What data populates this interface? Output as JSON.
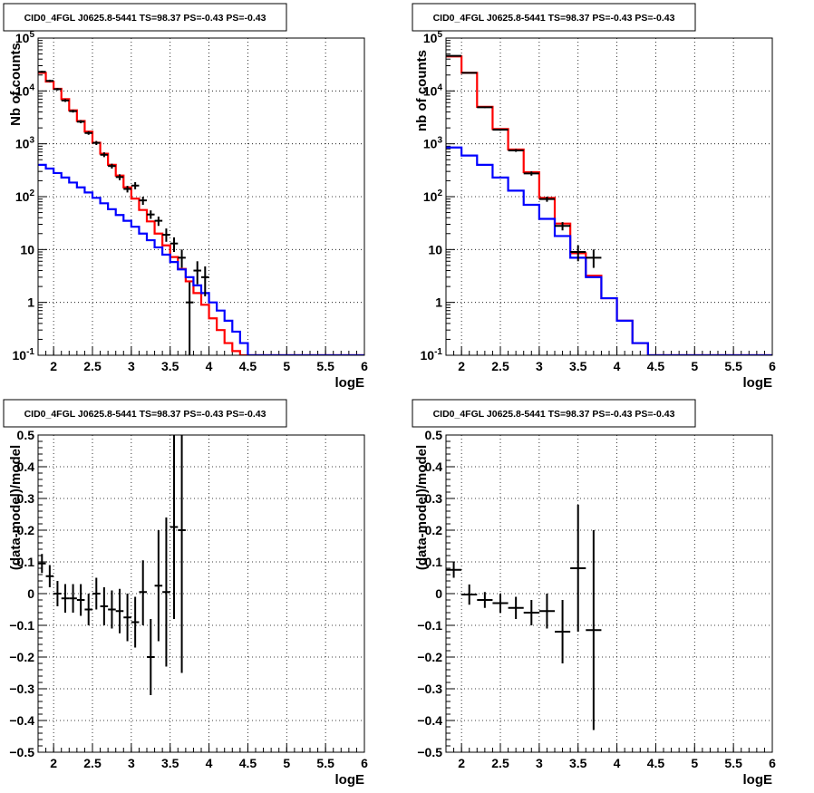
{
  "chart_data": [
    {
      "type": "line",
      "title": "CID0_4FGL J0625.8-5441 TS=98.37 PS=-0.43 PS=-0.43",
      "xlabel": "logE",
      "ylabel": "Nb of counts",
      "xlim": [
        1.8,
        6
      ],
      "ylim": [
        0.1,
        100000
      ],
      "yscale": "log",
      "grid": true,
      "x_ticks": [
        "2",
        "2.5",
        "3",
        "3.5",
        "4",
        "4.5",
        "5",
        "5.5",
        "6"
      ],
      "y_ticks": [
        "10^-1",
        "1",
        "10",
        "10^2",
        "10^3",
        "10^4",
        "10^5"
      ],
      "bin_edges": [
        1.8,
        1.9,
        2.0,
        2.1,
        2.2,
        2.3,
        2.4,
        2.5,
        2.6,
        2.7,
        2.8,
        2.9,
        3.0,
        3.1,
        3.2,
        3.3,
        3.4,
        3.5,
        3.6,
        3.7,
        3.8,
        3.9,
        4.0,
        4.1,
        4.2,
        4.3,
        4.4,
        4.5,
        4.6,
        4.7,
        4.8,
        4.9,
        5.0,
        5.1,
        5.2,
        5.3,
        5.4,
        5.5,
        5.6,
        5.7,
        5.8,
        5.9,
        6.0
      ],
      "series": [
        {
          "color": "#ff0000",
          "style": "step",
          "values": [
            22000,
            15000,
            11000,
            7000,
            4300,
            2700,
            1700,
            1050,
            650,
            400,
            250,
            150,
            92,
            56,
            34,
            20,
            12,
            7.2,
            4.3,
            2.5,
            1.5,
            0.9,
            0.5,
            0.3,
            0.17,
            0.12,
            0.1,
            0.1,
            0.1,
            0.1,
            0.1,
            0.1,
            0.1,
            0.1,
            0.1,
            0.1,
            0.1,
            0.1,
            0.1,
            0.1,
            0.1,
            0.1
          ]
        },
        {
          "color": "#0000ff",
          "style": "step",
          "values": [
            400,
            340,
            280,
            230,
            185,
            150,
            120,
            95,
            75,
            58,
            45,
            35,
            27,
            20,
            15,
            11,
            8,
            5.8,
            4.2,
            3.0,
            2.1,
            1.5,
            1.0,
            0.7,
            0.45,
            0.28,
            0.17,
            0.1,
            0.1,
            0.1,
            0.1,
            0.1,
            0.1,
            0.1,
            0.1,
            0.1,
            0.1,
            0.1,
            0.1,
            0.1,
            0.1,
            0.1
          ]
        }
      ],
      "points": [
        {
          "x": 1.85,
          "y": 23000,
          "ylo": 22000,
          "yhi": 24000
        },
        {
          "x": 1.95,
          "y": 15500,
          "ylo": 14700,
          "yhi": 16300
        },
        {
          "x": 2.05,
          "y": 10800,
          "ylo": 10200,
          "yhi": 11400
        },
        {
          "x": 2.15,
          "y": 6600,
          "ylo": 6200,
          "yhi": 7000
        },
        {
          "x": 2.25,
          "y": 4150,
          "ylo": 3900,
          "yhi": 4400
        },
        {
          "x": 2.35,
          "y": 2620,
          "ylo": 2450,
          "yhi": 2800
        },
        {
          "x": 2.45,
          "y": 1600,
          "ylo": 1480,
          "yhi": 1720
        },
        {
          "x": 2.55,
          "y": 1040,
          "ylo": 950,
          "yhi": 1130
        },
        {
          "x": 2.65,
          "y": 620,
          "ylo": 560,
          "yhi": 690
        },
        {
          "x": 2.75,
          "y": 380,
          "ylo": 340,
          "yhi": 420
        },
        {
          "x": 2.85,
          "y": 235,
          "ylo": 205,
          "yhi": 265
        },
        {
          "x": 2.95,
          "y": 140,
          "ylo": 120,
          "yhi": 160
        },
        {
          "x": 3.05,
          "y": 162,
          "ylo": 138,
          "yhi": 188
        },
        {
          "x": 3.15,
          "y": 85,
          "ylo": 70,
          "yhi": 100
        },
        {
          "x": 3.25,
          "y": 46,
          "ylo": 38,
          "yhi": 55
        },
        {
          "x": 3.35,
          "y": 35,
          "ylo": 28,
          "yhi": 42
        },
        {
          "x": 3.45,
          "y": 19,
          "ylo": 14,
          "yhi": 25
        },
        {
          "x": 3.55,
          "y": 13,
          "ylo": 9,
          "yhi": 17
        },
        {
          "x": 3.65,
          "y": 7,
          "ylo": 4.5,
          "yhi": 10
        },
        {
          "x": 3.75,
          "y": 1,
          "ylo": 0.1,
          "yhi": 2.4
        },
        {
          "x": 3.85,
          "y": 4,
          "ylo": 2.2,
          "yhi": 6
        },
        {
          "x": 3.95,
          "y": 3,
          "ylo": 1.3,
          "yhi": 4.8
        }
      ]
    },
    {
      "type": "line",
      "title": "CID0_4FGL J0625.8-5441 TS=98.37 PS=-0.43 PS=-0.43",
      "xlabel": "logE",
      "ylabel": "nb of counts",
      "xlim": [
        1.8,
        6
      ],
      "ylim": [
        0.1,
        100000
      ],
      "yscale": "log",
      "grid": true,
      "x_ticks": [
        "2",
        "2.5",
        "3",
        "3.5",
        "4",
        "4.5",
        "5",
        "5.5",
        "6"
      ],
      "y_ticks": [
        "10^-1",
        "1",
        "10",
        "10^2",
        "10^3",
        "10^4",
        "10^5"
      ],
      "bin_edges": [
        1.8,
        2.0,
        2.2,
        2.4,
        2.6,
        2.8,
        3.0,
        3.2,
        3.4,
        3.6,
        3.8,
        4.0,
        4.2,
        4.4,
        4.6,
        4.8,
        5.0,
        5.2,
        5.4,
        5.6,
        5.8,
        6.0
      ],
      "series": [
        {
          "color": "#ff0000",
          "style": "step",
          "values": [
            45000,
            22000,
            5000,
            1900,
            780,
            290,
            95,
            31,
            8.5,
            3.2,
            1.2,
            0.45,
            0.17,
            0.1,
            0.1,
            0.1,
            0.1,
            0.1,
            0.1,
            0.1,
            0.1
          ]
        },
        {
          "color": "#0000ff",
          "style": "step",
          "values": [
            850,
            600,
            400,
            230,
            130,
            70,
            38,
            18,
            7,
            3,
            1.2,
            0.45,
            0.17,
            0.1,
            0.1,
            0.1,
            0.1,
            0.1,
            0.1,
            0.1,
            0.1
          ]
        }
      ],
      "points": [
        {
          "x": 1.9,
          "y": 46000,
          "ylo": 45000,
          "yhi": 47000
        },
        {
          "x": 2.1,
          "y": 22000,
          "ylo": 21500,
          "yhi": 22500
        },
        {
          "x": 2.3,
          "y": 4900,
          "ylo": 4750,
          "yhi": 5050
        },
        {
          "x": 2.5,
          "y": 1850,
          "ylo": 1770,
          "yhi": 1930
        },
        {
          "x": 2.7,
          "y": 750,
          "ylo": 705,
          "yhi": 795
        },
        {
          "x": 2.9,
          "y": 275,
          "ylo": 250,
          "yhi": 300
        },
        {
          "x": 3.1,
          "y": 90,
          "ylo": 80,
          "yhi": 100
        },
        {
          "x": 3.3,
          "y": 28,
          "ylo": 23,
          "yhi": 33
        },
        {
          "x": 3.5,
          "y": 9,
          "ylo": 6,
          "yhi": 12
        },
        {
          "x": 3.7,
          "y": 7,
          "ylo": 4.5,
          "yhi": 10
        }
      ]
    },
    {
      "type": "scatter",
      "title": "CID0_4FGL J0625.8-5441 TS=98.37 PS=-0.43 PS=-0.43",
      "xlabel": "logE",
      "ylabel": "(data-model)/model",
      "xlim": [
        1.8,
        6
      ],
      "ylim": [
        -0.5,
        0.5
      ],
      "grid": true,
      "x_ticks": [
        "2",
        "2.5",
        "3",
        "3.5",
        "4",
        "4.5",
        "5",
        "5.5",
        "6"
      ],
      "y_ticks": [
        "−0.5",
        "−0.4",
        "−0.3",
        "−0.2",
        "−0.1",
        "0",
        "0.1",
        "0.2",
        "0.3",
        "0.4",
        "0.5"
      ],
      "points": [
        {
          "x": 1.85,
          "y": 0.095,
          "ylo": 0.065,
          "yhi": 0.125,
          "xhw": 0.05
        },
        {
          "x": 1.95,
          "y": 0.055,
          "ylo": 0.02,
          "yhi": 0.09,
          "xhw": 0.05
        },
        {
          "x": 2.05,
          "y": 0.0,
          "ylo": -0.04,
          "yhi": 0.04,
          "xhw": 0.05
        },
        {
          "x": 2.15,
          "y": -0.015,
          "ylo": -0.06,
          "yhi": 0.03,
          "xhw": 0.05
        },
        {
          "x": 2.25,
          "y": -0.015,
          "ylo": -0.06,
          "yhi": 0.03,
          "xhw": 0.05
        },
        {
          "x": 2.35,
          "y": -0.02,
          "ylo": -0.07,
          "yhi": 0.03,
          "xhw": 0.05
        },
        {
          "x": 2.45,
          "y": -0.05,
          "ylo": -0.1,
          "yhi": 0.0,
          "xhw": 0.05
        },
        {
          "x": 2.55,
          "y": 0.0,
          "ylo": -0.05,
          "yhi": 0.05,
          "xhw": 0.05
        },
        {
          "x": 2.65,
          "y": -0.04,
          "ylo": -0.1,
          "yhi": 0.02,
          "xhw": 0.05
        },
        {
          "x": 2.75,
          "y": -0.05,
          "ylo": -0.11,
          "yhi": 0.01,
          "xhw": 0.05
        },
        {
          "x": 2.85,
          "y": -0.055,
          "ylo": -0.125,
          "yhi": 0.015,
          "xhw": 0.05
        },
        {
          "x": 2.95,
          "y": -0.075,
          "ylo": -0.15,
          "yhi": 0.0,
          "xhw": 0.05
        },
        {
          "x": 3.05,
          "y": -0.09,
          "ylo": -0.17,
          "yhi": -0.01,
          "xhw": 0.05
        },
        {
          "x": 3.15,
          "y": 0.005,
          "ylo": -0.1,
          "yhi": 0.105,
          "xhw": 0.05
        },
        {
          "x": 3.25,
          "y": -0.2,
          "ylo": -0.32,
          "yhi": -0.08,
          "xhw": 0.05
        },
        {
          "x": 3.35,
          "y": 0.025,
          "ylo": -0.15,
          "yhi": 0.2,
          "xhw": 0.05
        },
        {
          "x": 3.45,
          "y": 0.005,
          "ylo": -0.23,
          "yhi": 0.24,
          "xhw": 0.05
        },
        {
          "x": 3.55,
          "y": 0.21,
          "ylo": -0.08,
          "yhi": 0.5,
          "xhw": 0.05
        },
        {
          "x": 3.65,
          "y": 0.2,
          "ylo": -0.25,
          "yhi": 0.5,
          "xhw": 0.05
        }
      ]
    },
    {
      "type": "scatter",
      "title": "CID0_4FGL J0625.8-5441 TS=98.37 PS=-0.43 PS=-0.43",
      "xlabel": "logE",
      "ylabel": "(data-model)/model",
      "xlim": [
        1.8,
        6
      ],
      "ylim": [
        -0.5,
        0.5
      ],
      "grid": true,
      "x_ticks": [
        "2",
        "2.5",
        "3",
        "3.5",
        "4",
        "4.5",
        "5",
        "5.5",
        "6"
      ],
      "y_ticks": [
        "−0.5",
        "−0.4",
        "−0.3",
        "−0.2",
        "−0.1",
        "0",
        "0.1",
        "0.2",
        "0.3",
        "0.4",
        "0.5"
      ],
      "points": [
        {
          "x": 1.9,
          "y": 0.075,
          "ylo": 0.05,
          "yhi": 0.1,
          "xhw": 0.1
        },
        {
          "x": 2.1,
          "y": -0.003,
          "ylo": -0.035,
          "yhi": 0.029,
          "xhw": 0.1
        },
        {
          "x": 2.3,
          "y": -0.02,
          "ylo": -0.045,
          "yhi": 0.005,
          "xhw": 0.1
        },
        {
          "x": 2.5,
          "y": -0.03,
          "ylo": -0.06,
          "yhi": 0.0,
          "xhw": 0.1
        },
        {
          "x": 2.7,
          "y": -0.045,
          "ylo": -0.08,
          "yhi": -0.01,
          "xhw": 0.1
        },
        {
          "x": 2.9,
          "y": -0.06,
          "ylo": -0.1,
          "yhi": -0.02,
          "xhw": 0.1
        },
        {
          "x": 3.1,
          "y": -0.055,
          "ylo": -0.11,
          "yhi": 0.0,
          "xhw": 0.1
        },
        {
          "x": 3.3,
          "y": -0.12,
          "ylo": -0.22,
          "yhi": -0.02,
          "xhw": 0.1
        },
        {
          "x": 3.5,
          "y": 0.08,
          "ylo": -0.12,
          "yhi": 0.28,
          "xhw": 0.1
        },
        {
          "x": 3.7,
          "y": -0.115,
          "ylo": -0.43,
          "yhi": 0.2,
          "xhw": 0.1
        }
      ]
    }
  ]
}
